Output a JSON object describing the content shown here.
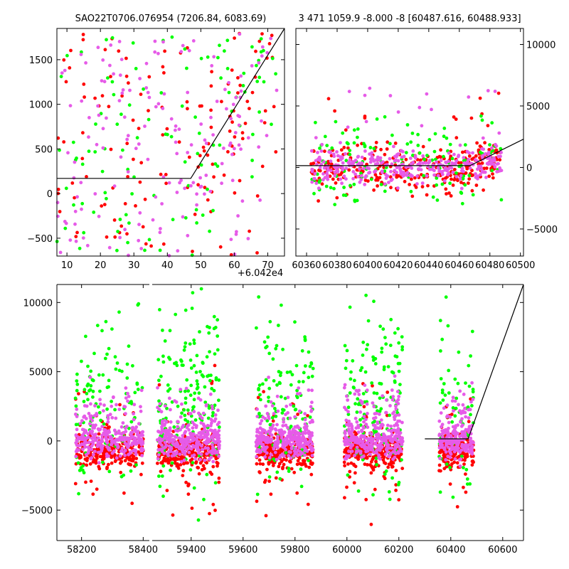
{
  "colors": {
    "red": "#ff0000",
    "green": "#00ff00",
    "magenta": "#e65be8",
    "model": "#000000"
  },
  "chart_data": [
    {
      "panel": "top-left",
      "type": "scatter",
      "title": "SAO22T0706.076954 (7206.84, 6083.69)",
      "xlim": [
        7,
        75
      ],
      "ylim": [
        -700,
        1850
      ],
      "xticks": [
        10,
        20,
        30,
        40,
        50,
        60,
        70
      ],
      "yticks": [
        -500,
        0,
        500,
        1000,
        1500
      ],
      "x_offset_label": "+6.042e4",
      "grid": false,
      "model_line": [
        [
          7,
          170
        ],
        [
          47,
          170
        ],
        [
          75,
          1850
        ]
      ],
      "series": [
        {
          "color": "red",
          "x_range": [
            7,
            73
          ],
          "y_range": [
            -700,
            1800
          ],
          "n": 140
        },
        {
          "color": "green",
          "x_range": [
            7,
            73
          ],
          "y_range": [
            -700,
            1800
          ],
          "n": 110
        },
        {
          "color": "magenta",
          "x_range": [
            7,
            73
          ],
          "y_range": [
            -700,
            1800
          ],
          "n": 170
        }
      ]
    },
    {
      "panel": "top-right",
      "type": "scatter",
      "title": "3 471 1059.9 -8.000 -8 [60487.616, 60488.933]",
      "xlim": [
        60353,
        60502
      ],
      "ylim": [
        -7200,
        11300
      ],
      "xticks": [
        60360,
        60380,
        60400,
        60420,
        60440,
        60460,
        60480,
        60500
      ],
      "yticks": [
        -5000,
        0,
        5000,
        10000
      ],
      "grid": false,
      "model_line": [
        [
          60353,
          150
        ],
        [
          60467,
          150
        ],
        [
          60502,
          2300
        ]
      ],
      "series": [
        {
          "color": "red",
          "x_range": [
            60363,
            60488
          ],
          "y_center": -200,
          "y_spread": 900,
          "n": 320
        },
        {
          "color": "green",
          "x_range": [
            60363,
            60488
          ],
          "y_center": 300,
          "y_spread": 1600,
          "n": 140
        },
        {
          "color": "magenta",
          "x_range": [
            60363,
            60488
          ],
          "y_center": 100,
          "y_spread": 700,
          "n": 330
        }
      ]
    },
    {
      "panel": "bottom",
      "type": "scatter",
      "xlim": [
        58120,
        60680
      ],
      "ylim": [
        -7200,
        11300
      ],
      "x_break": [
        58420,
        59250
      ],
      "xticks": [
        58200,
        58400,
        59400,
        59600,
        59800,
        60000,
        60200,
        60400,
        60600
      ],
      "yticks": [
        -5000,
        0,
        5000,
        10000
      ],
      "grid": false,
      "model_line": [
        [
          60300,
          150
        ],
        [
          60467,
          150
        ],
        [
          60680,
          11300
        ]
      ],
      "seasons": [
        {
          "x_range": [
            58180,
            58400
          ],
          "n_red": 260,
          "n_green": 110,
          "n_magenta": 300
        },
        {
          "x_range": [
            59270,
            59510
          ],
          "n_red": 300,
          "n_green": 180,
          "n_magenta": 330
        },
        {
          "x_range": [
            59650,
            59870
          ],
          "n_red": 260,
          "n_green": 130,
          "n_magenta": 300
        },
        {
          "x_range": [
            59990,
            60215
          ],
          "n_red": 280,
          "n_green": 150,
          "n_magenta": 320
        },
        {
          "x_range": [
            60355,
            60488
          ],
          "n_red": 170,
          "n_green": 60,
          "n_magenta": 200
        }
      ]
    }
  ]
}
